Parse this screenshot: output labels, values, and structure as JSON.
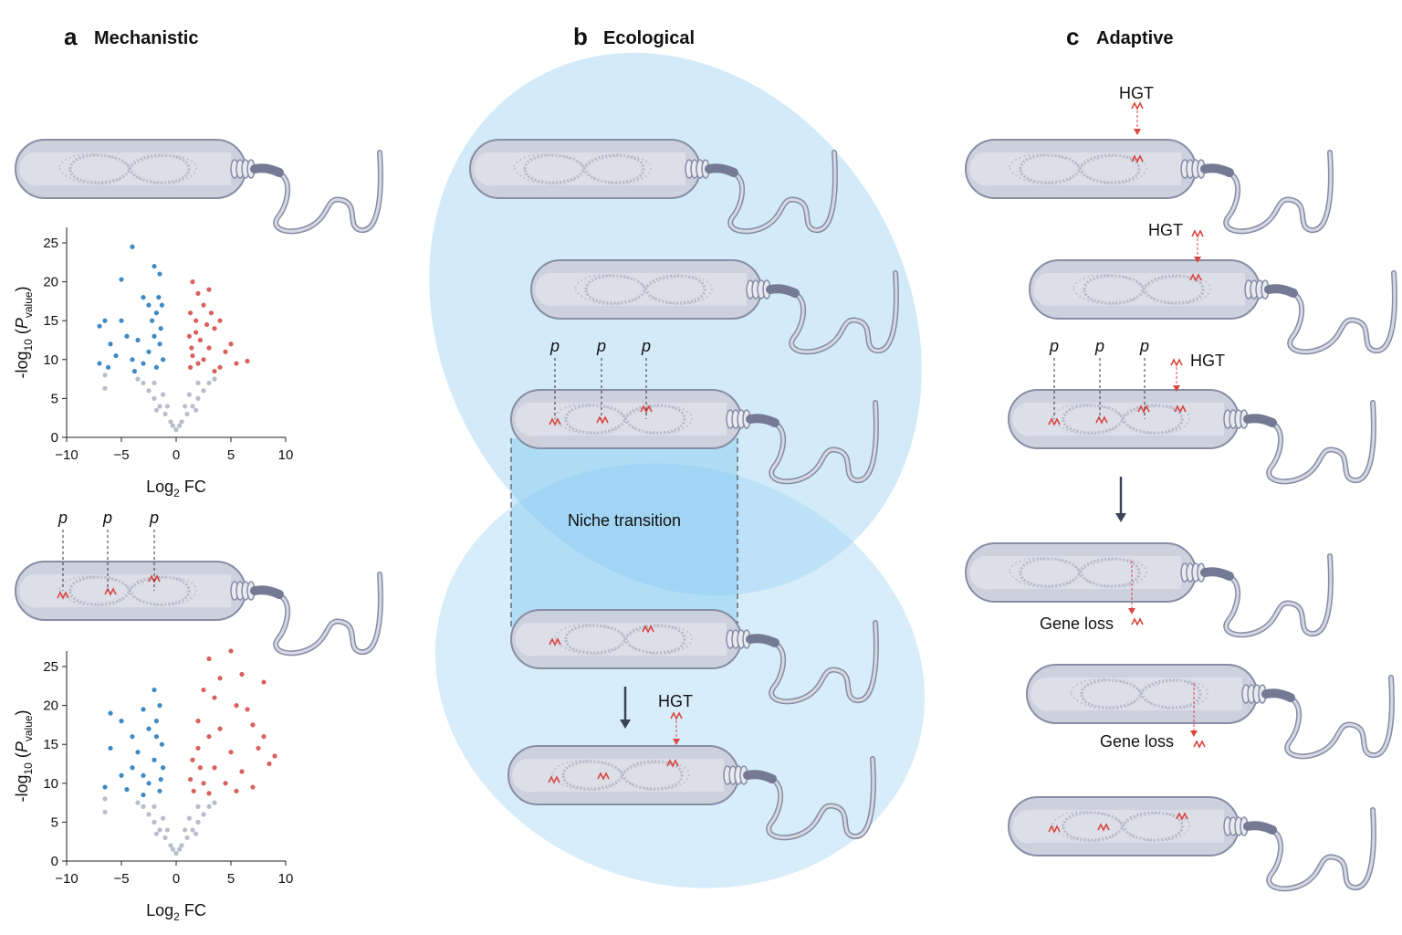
{
  "panels": [
    {
      "letter": "a",
      "title": "Mechanistic"
    },
    {
      "letter": "b",
      "title": "Ecological"
    },
    {
      "letter": "c",
      "title": "Adaptive"
    }
  ],
  "labels": {
    "p": "p",
    "hgt": "HGT",
    "niche": "Niche transition",
    "gene_loss": "Gene loss"
  },
  "volcano_plots": [
    {
      "type": "scatter",
      "xlabel": [
        "Log",
        "2",
        " FC"
      ],
      "ylabel": [
        "-log",
        "10",
        " (",
        "P",
        "value",
        ")"
      ],
      "xlim": [
        -10,
        10
      ],
      "ylim": [
        0,
        27
      ],
      "xticks": [
        {
          "value": -10,
          "label": "−10"
        },
        {
          "value": -5,
          "label": "−5"
        },
        0,
        5,
        10
      ],
      "yticks": [
        0,
        5,
        10,
        15,
        20,
        25
      ],
      "series": [
        {
          "color": "#3f8ac4",
          "x": [
            -4,
            -2,
            -5,
            -1.5,
            -3,
            -2.5,
            -1.8,
            -6.5,
            -5,
            -7,
            -4.5,
            -3.5,
            -2,
            -1.5,
            -6,
            -5.5,
            -4,
            -3,
            -7,
            -6.2,
            -2.5,
            -1.2,
            -1.8,
            -3.8,
            -1.4,
            -2.2,
            -1.6,
            -1.3
          ],
          "y": [
            24.5,
            22,
            20.3,
            21,
            18,
            17,
            16,
            15,
            15,
            14.3,
            13,
            12.5,
            13,
            12,
            12,
            10.5,
            10,
            9.5,
            9.5,
            9,
            11,
            10,
            9,
            8.5,
            14,
            15,
            18,
            17
          ]
        },
        {
          "color": "#d9615c",
          "x": [
            1.5,
            2,
            3,
            2.5,
            1.3,
            1.8,
            4,
            3.5,
            1.2,
            2.2,
            5,
            4.5,
            3,
            1.5,
            2.5,
            5.5,
            6.5,
            4,
            1.3,
            3.5,
            1.8,
            2.8,
            1.4,
            2,
            3.2
          ],
          "y": [
            20,
            18.5,
            19,
            17,
            16,
            15,
            15,
            14,
            13,
            12.5,
            12,
            11,
            11.5,
            10.5,
            10,
            9.5,
            9.8,
            9,
            9,
            8.5,
            13.5,
            14.5,
            11.5,
            9.5,
            16
          ]
        },
        {
          "color": "#b9bccb",
          "x": [
            0,
            -0.5,
            0.5,
            -1,
            1,
            -1.5,
            1.5,
            -2,
            2,
            -2.5,
            2.5,
            -3,
            3,
            -0.3,
            0.3,
            -1.2,
            1.2,
            -3.5,
            3.5,
            -6.5,
            -6.5,
            -0.8,
            0.8,
            -2,
            2,
            -1.8,
            1.8
          ],
          "y": [
            1,
            2,
            2,
            3,
            3,
            4,
            4,
            5,
            5,
            6,
            6,
            7,
            7,
            1.5,
            1.5,
            5.5,
            5.5,
            7.5,
            7.5,
            6.3,
            8,
            4,
            4,
            7,
            7,
            3.5,
            3.5
          ]
        }
      ]
    },
    {
      "type": "scatter",
      "xlabel": [
        "Log",
        "2",
        " FC"
      ],
      "ylabel": [
        "-log",
        "10",
        " (",
        "P",
        "value",
        ")"
      ],
      "xlim": [
        -10,
        10
      ],
      "ylim": [
        0,
        27
      ],
      "xticks": [
        {
          "value": -10,
          "label": "−10"
        },
        {
          "value": -5,
          "label": "−5"
        },
        0,
        5,
        10
      ],
      "yticks": [
        0,
        5,
        10,
        15,
        20,
        25
      ],
      "series": [
        {
          "color": "#3f8ac4",
          "x": [
            -2,
            -6,
            -5,
            -3,
            -1.5,
            -2.5,
            -1.8,
            -4,
            -6,
            -3.5,
            -2,
            -1.3,
            -5,
            -4,
            -3,
            -6.5,
            -2.5,
            -1.5,
            -4.5,
            -1.2,
            -3,
            -1.8,
            -1.4
          ],
          "y": [
            22,
            19,
            18,
            19.5,
            20,
            17,
            16,
            16,
            14.5,
            14,
            13,
            15,
            11,
            12,
            11,
            9.5,
            10,
            9,
            9.2,
            12,
            8.5,
            18,
            10.5
          ]
        },
        {
          "color": "#d9615c",
          "x": [
            3,
            5,
            6,
            4,
            8,
            2.5,
            3.5,
            5.5,
            6.5,
            2,
            7,
            4,
            8,
            3,
            2,
            5,
            7.5,
            9,
            1.5,
            3.5,
            6,
            8.5,
            1.3,
            2.5,
            4.5,
            7,
            5.5,
            1.6,
            3,
            2.2
          ],
          "y": [
            26,
            27,
            24,
            23.5,
            23,
            22,
            21,
            20,
            19.5,
            18,
            17.5,
            17,
            16,
            16,
            14.5,
            14,
            14.5,
            13.5,
            13,
            12,
            11.5,
            12.5,
            10.5,
            10,
            10,
            9.5,
            9,
            9,
            8.7,
            12
          ]
        },
        {
          "color": "#b9bccb",
          "x": [
            0,
            -0.5,
            0.5,
            -1,
            1,
            -1.5,
            1.5,
            -2,
            2,
            -2.5,
            2.5,
            -3,
            3,
            -0.3,
            0.3,
            -1.2,
            1.2,
            -3.5,
            3.5,
            -6.5,
            -6.5,
            -0.8,
            0.8,
            -2,
            2,
            -1.8,
            1.8
          ],
          "y": [
            1,
            2,
            2,
            3,
            3,
            4,
            4,
            5,
            5,
            6,
            6,
            7,
            7,
            1.5,
            1.5,
            5.5,
            5.5,
            7.5,
            7.5,
            6.3,
            8,
            4,
            4,
            7,
            7,
            3.5,
            3.5
          ]
        }
      ]
    }
  ]
}
